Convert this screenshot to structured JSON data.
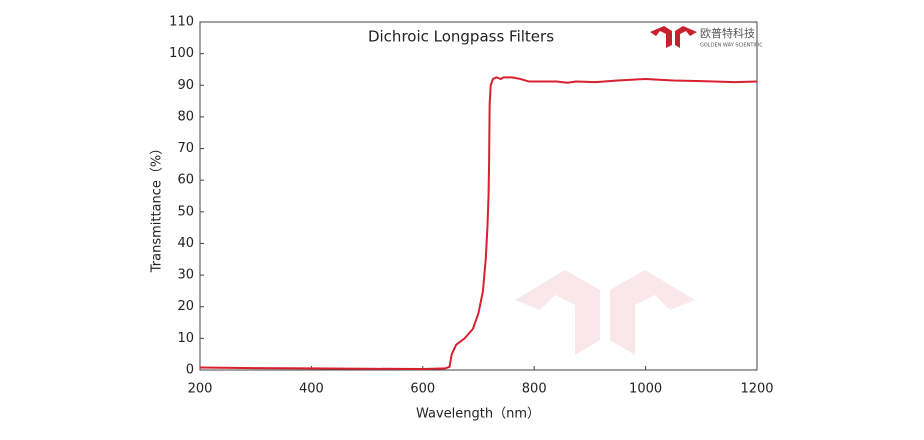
{
  "chart_data": {
    "type": "line",
    "title": "Dichroic Longpass Filters",
    "logo": {
      "name": "欧普特科技",
      "tagline": "GOLDEN WAY SCIENTIFIC"
    },
    "x_label": "Wavelength（nm）",
    "y_label": "Transmittance（%）",
    "x": [
      200,
      300,
      400,
      500,
      600,
      640,
      648,
      652,
      660,
      675,
      690,
      700,
      708,
      713,
      716,
      718,
      719,
      719.5,
      720,
      722,
      726,
      732,
      740,
      745,
      760,
      775,
      790,
      840,
      860,
      875,
      910,
      950,
      1000,
      1050,
      1100,
      1160,
      1200
    ],
    "series": [
      {
        "name": "Transmittance",
        "color": "#d8202f",
        "values": [
          0.8,
          0.6,
          0.5,
          0.4,
          0.3,
          0.5,
          1,
          5,
          8,
          10,
          13,
          18,
          25,
          35,
          45,
          55,
          65,
          75,
          84,
          90,
          92,
          92.5,
          92,
          92.5,
          92.5,
          92,
          91.2,
          91.2,
          90.8,
          91.2,
          91,
          91.5,
          92,
          91.5,
          91.3,
          91,
          91.2
        ]
      }
    ],
    "xlim": [
      200,
      1200
    ],
    "xticks": [
      200,
      400,
      600,
      800,
      1000,
      1200
    ],
    "ylim": [
      0,
      110
    ],
    "yticks": [
      0,
      10,
      20,
      30,
      40,
      50,
      60,
      70,
      80,
      90,
      100,
      110
    ],
    "grid": false
  }
}
